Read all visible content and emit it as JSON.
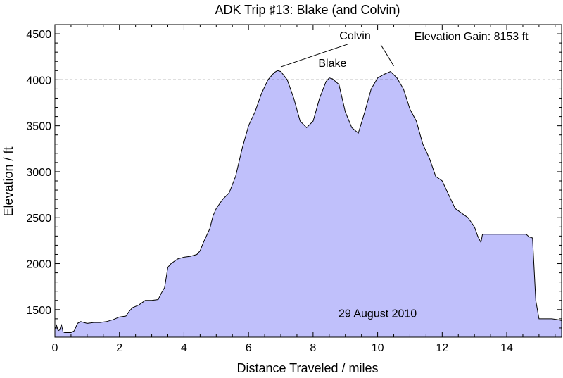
{
  "chart_data": {
    "type": "area",
    "title": "ADK Trip ♯13: Blake (and Colvin)",
    "xlabel": "Distance Traveled / miles",
    "ylabel": "Elevation / ft",
    "xlim": [
      0,
      15.7
    ],
    "ylim": [
      1200,
      4600
    ],
    "xticks": [
      0,
      2,
      4,
      6,
      8,
      10,
      12,
      14
    ],
    "yticks": [
      1500,
      2000,
      2500,
      3000,
      3500,
      4000,
      4500
    ],
    "reference_line": {
      "y": 4000,
      "style": "dashed"
    },
    "fill_color": "#c0c0fb",
    "line_color": "#000000",
    "series": [
      {
        "x": [
          0,
          0.05,
          0.1,
          0.15,
          0.2,
          0.25,
          0.3,
          0.5,
          0.6,
          0.7,
          0.8,
          0.9,
          1.0,
          1.2,
          1.4,
          1.6,
          1.8,
          2.0,
          2.2,
          2.3,
          2.4,
          2.6,
          2.8,
          3.0,
          3.2,
          3.3,
          3.4,
          3.5,
          3.55,
          3.6,
          3.8,
          4.0,
          4.2,
          4.4,
          4.5,
          4.6,
          4.8,
          4.9,
          5.0,
          5.2,
          5.4,
          5.6,
          5.8,
          6.0,
          6.2,
          6.4,
          6.6,
          6.8,
          6.9,
          7.0,
          7.2,
          7.4,
          7.6,
          7.8,
          8.0,
          8.2,
          8.4,
          8.5,
          8.6,
          8.7,
          8.8,
          9.0,
          9.2,
          9.4,
          9.6,
          9.8,
          10.0,
          10.2,
          10.4,
          10.6,
          10.8,
          11.0,
          11.2,
          11.4,
          11.6,
          11.8,
          12.0,
          12.2,
          12.4,
          12.6,
          12.8,
          13.0,
          13.1,
          13.2,
          13.25,
          13.3,
          14.0,
          14.6,
          14.7,
          14.8,
          14.9,
          15.0,
          15.2,
          15.4,
          15.6,
          15.7
        ],
        "y": [
          1290,
          1330,
          1270,
          1280,
          1340,
          1260,
          1250,
          1250,
          1270,
          1350,
          1370,
          1360,
          1350,
          1360,
          1360,
          1370,
          1390,
          1420,
          1430,
          1480,
          1520,
          1550,
          1600,
          1600,
          1610,
          1680,
          1740,
          1960,
          1980,
          2000,
          2050,
          2070,
          2080,
          2100,
          2140,
          2230,
          2380,
          2520,
          2600,
          2700,
          2770,
          2950,
          3250,
          3500,
          3650,
          3850,
          4000,
          4080,
          4100,
          4090,
          4000,
          3800,
          3550,
          3480,
          3550,
          3800,
          3980,
          4020,
          4010,
          3980,
          3950,
          3650,
          3480,
          3420,
          3650,
          3900,
          4020,
          4060,
          4090,
          4020,
          3900,
          3680,
          3550,
          3300,
          3150,
          2950,
          2900,
          2750,
          2600,
          2550,
          2500,
          2400,
          2300,
          2230,
          2320,
          2320,
          2320,
          2320,
          2290,
          2280,
          1600,
          1400,
          1400,
          1400,
          1390,
          1380
        ]
      }
    ],
    "annotations": [
      {
        "text": "Colvin",
        "x": 9.3,
        "y": 4440
      },
      {
        "text": "Blake",
        "x": 8.6,
        "y": 4140
      },
      {
        "text": "Elevation Gain: 8153 ft",
        "x": 12.9,
        "y": 4430
      },
      {
        "text": "29 August 2010",
        "x": 10.0,
        "y": 1420
      }
    ],
    "leader_lines": [
      {
        "from": [
          9.1,
          4390
        ],
        "to": [
          7.0,
          4140
        ]
      },
      {
        "from": [
          10.1,
          4380
        ],
        "to": [
          10.5,
          4150
        ]
      }
    ]
  }
}
